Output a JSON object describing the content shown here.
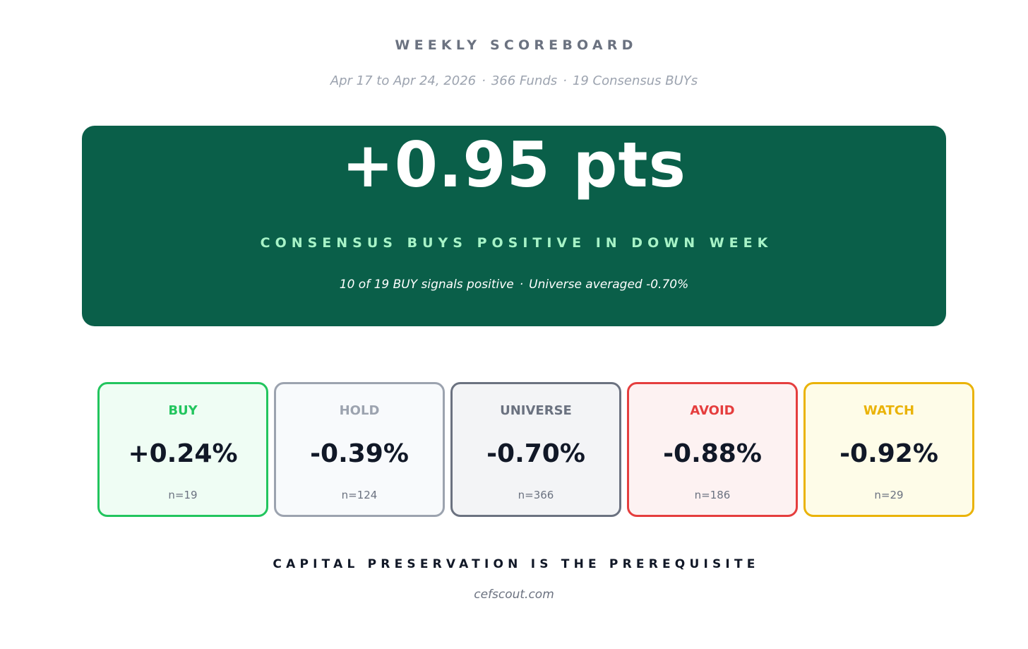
{
  "header": {
    "title": "WEEKLY SCOREBOARD",
    "date_range": "Apr 17 to Apr 24, 2026",
    "funds": "366 Funds",
    "consensus": "19 Consensus BUYs",
    "separator": "·"
  },
  "hero": {
    "value": "+0.95 pts",
    "label": "CONSENSUS BUYS POSITIVE IN DOWN WEEK",
    "note_left": "10 of 19 BUY signals positive",
    "note_right": "Universe averaged -0.70%",
    "separator": "·",
    "background_color": "#0a5f49",
    "label_color": "#a7f3c7"
  },
  "cards": [
    {
      "label": "BUY",
      "value": "+0.24%",
      "n": "n=19",
      "accent": "#22c55e",
      "background": "#effdf4"
    },
    {
      "label": "HOLD",
      "value": "-0.39%",
      "n": "n=124",
      "accent": "#9ca3af",
      "background": "#f8fafc"
    },
    {
      "label": "UNIVERSE",
      "value": "-0.70%",
      "n": "n=366",
      "accent": "#6b7280",
      "background": "#f3f4f6"
    },
    {
      "label": "AVOID",
      "value": "-0.88%",
      "n": "n=186",
      "accent": "#e53e3e",
      "background": "#fdf2f2"
    },
    {
      "label": "WATCH",
      "value": "-0.92%",
      "n": "n=29",
      "accent": "#eab308",
      "background": "#fefce8"
    }
  ],
  "footer": {
    "tagline": "CAPITAL PRESERVATION IS THE PREREQUISITE",
    "site": "cefscout.com"
  }
}
